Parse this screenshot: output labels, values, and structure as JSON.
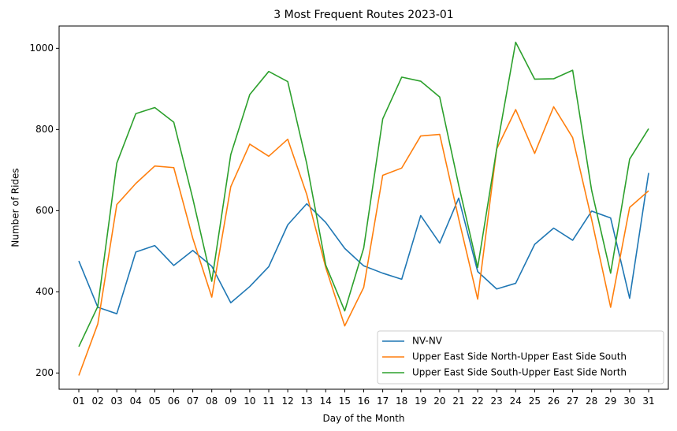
{
  "chart_data": {
    "type": "line",
    "title": "3 Most Frequent Routes 2023-01",
    "xlabel": "Day of the Month",
    "ylabel": "Number of Rides",
    "ylim": [
      160,
      1055
    ],
    "yticks": [
      200,
      400,
      600,
      800,
      1000
    ],
    "categories": [
      "01",
      "02",
      "03",
      "04",
      "05",
      "06",
      "07",
      "08",
      "09",
      "10",
      "11",
      "12",
      "13",
      "14",
      "15",
      "16",
      "17",
      "18",
      "19",
      "20",
      "21",
      "22",
      "23",
      "24",
      "25",
      "26",
      "27",
      "28",
      "29",
      "30",
      "31"
    ],
    "legend_position": "lower-right",
    "grid": false,
    "series": [
      {
        "name": "NV-NV",
        "color": "#1f77b4",
        "values": [
          476,
          362,
          346,
          498,
          514,
          465,
          502,
          463,
          373,
          413,
          462,
          565,
          617,
          571,
          507,
          464,
          446,
          431,
          588,
          520,
          631,
          450,
          407,
          421,
          517,
          557,
          527,
          599,
          582,
          384,
          693
        ]
      },
      {
        "name": "Upper East Side North-Upper East Side South",
        "color": "#ff7f0e",
        "values": [
          194,
          321,
          615,
          667,
          710,
          706,
          532,
          387,
          659,
          764,
          734,
          776,
          640,
          460,
          316,
          411,
          687,
          705,
          784,
          788,
          580,
          382,
          752,
          849,
          741,
          856,
          780,
          578,
          362,
          608,
          649
        ]
      },
      {
        "name": "Upper East Side South-Upper East Side North",
        "color": "#2ca02c",
        "values": [
          265,
          364,
          717,
          839,
          854,
          818,
          630,
          426,
          738,
          886,
          943,
          918,
          716,
          466,
          353,
          508,
          826,
          929,
          919,
          880,
          663,
          460,
          752,
          1015,
          924,
          925,
          946,
          650,
          446,
          727,
          802
        ]
      }
    ]
  }
}
